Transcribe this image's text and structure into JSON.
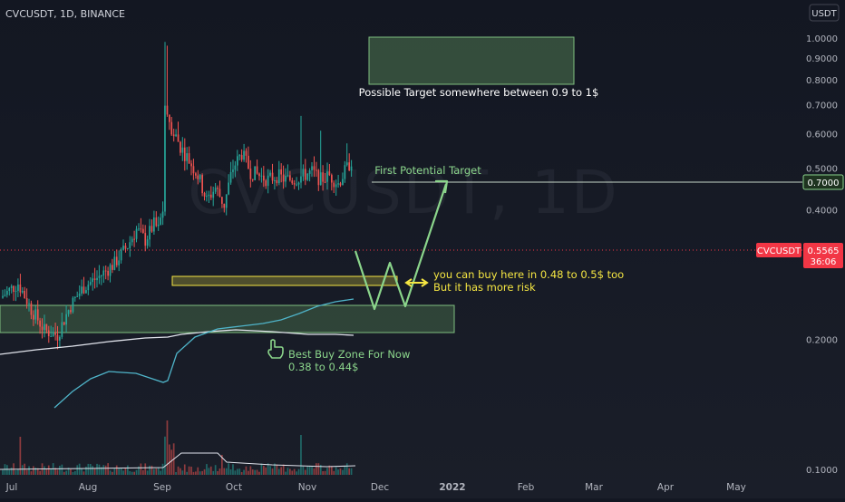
{
  "header": {
    "symbol_line": "CVCUSDT, 1D, BINANCE",
    "currency": "USDT"
  },
  "watermark": "CVCUSDT, 1D",
  "price_badge": {
    "label": "CVCUSDT",
    "price": "0.5565",
    "countdown": "36:06"
  },
  "annotations": {
    "top_target": "Possible Target somewhere between 0.9 to 1$",
    "first_target": "First Potential Target",
    "first_target_price": "0.7000",
    "buy_note_1": "you can buy here in 0.48 to 0.5$ too",
    "buy_note_2": "But it has more risk",
    "best_zone_1": "Best Buy Zone For Now",
    "best_zone_2": "0.38 to 0.44$"
  },
  "colors": {
    "bg": "#131722",
    "up": "#26a69a",
    "down": "#ef5350",
    "ma_blue": "#4fb4c9",
    "ma_white": "#e0e3eb",
    "green_zone": "#5b8f5b",
    "yellow": "#f5e642",
    "label_green": "#8bd58b",
    "badge_red": "#f23645"
  },
  "chart_data": {
    "type": "candlestick",
    "title": "CVCUSDT, 1D, BINANCE",
    "ylim": [
      0.08,
      1.06
    ],
    "y_scale": "log",
    "y_ticks": [
      "1.0000",
      "0.9000",
      "0.8000",
      "0.7000",
      "0.6000",
      "0.5000",
      "0.4000",
      "0.3000",
      "0.2000",
      "0.1000"
    ],
    "x_ticks": [
      "Jul",
      "Aug",
      "Sep",
      "Oct",
      "Nov",
      "Dec",
      "2022",
      "Feb",
      "Mar",
      "Apr",
      "May"
    ],
    "zones": [
      {
        "name": "possible-target-zone",
        "low": 0.9,
        "high": 1.0
      },
      {
        "name": "more-risk-zone",
        "low": 0.48,
        "high": 0.5
      },
      {
        "name": "best-buy-zone",
        "low": 0.38,
        "high": 0.44
      }
    ],
    "levels": [
      {
        "name": "first-potential-target",
        "value": 0.7
      },
      {
        "name": "last-price",
        "value": 0.5565
      }
    ],
    "projection_path": [
      0.58,
      0.44,
      0.52,
      0.44,
      0.7
    ]
  }
}
